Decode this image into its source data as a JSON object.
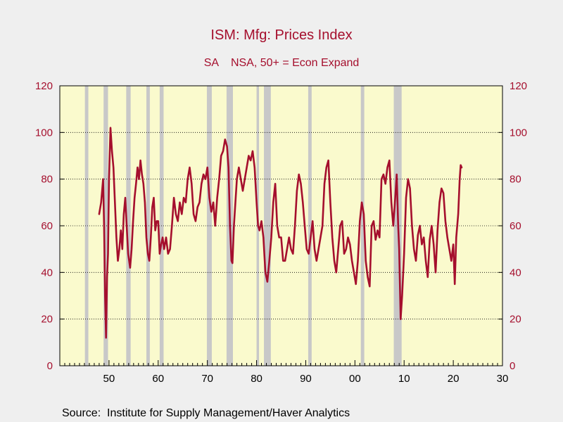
{
  "chart_data": {
    "type": "line",
    "title": "ISM: Mfg: Prices Index",
    "subtitle": "SA    NSA, 50+ = Econ Expand",
    "source": "Source:  Institute for Supply Management/Haver Analytics",
    "colors": {
      "line": "#a50f2d",
      "plot_bg": "#fafacd",
      "recession": "#c8c8c8",
      "grid": "#000000"
    },
    "xlim": [
      1940,
      2030
    ],
    "ylim": [
      0,
      120
    ],
    "y_ticks": [
      0,
      20,
      40,
      60,
      80,
      100,
      120
    ],
    "x_ticks": [
      1950,
      1960,
      1970,
      1980,
      1990,
      2000,
      2010,
      2020,
      2030
    ],
    "x_tick_labels": [
      "50",
      "60",
      "70",
      "80",
      "90",
      "00",
      "10",
      "20",
      "30"
    ],
    "grid": "horizontal dotted",
    "recessions": [
      [
        1945.1,
        1945.8
      ],
      [
        1948.9,
        1949.8
      ],
      [
        1953.5,
        1954.4
      ],
      [
        1957.6,
        1958.3
      ],
      [
        1960.3,
        1961.1
      ],
      [
        1969.9,
        1970.9
      ],
      [
        1973.9,
        1975.2
      ],
      [
        1980.0,
        1980.5
      ],
      [
        1981.5,
        1982.9
      ],
      [
        1990.5,
        1991.2
      ],
      [
        2001.2,
        2001.9
      ],
      [
        2007.9,
        2009.5
      ]
    ],
    "series": [
      {
        "x": [
          1948.0,
          1948.4,
          1948.8,
          1949.0,
          1949.2,
          1949.4,
          1949.6,
          1949.8,
          1950.0,
          1950.3,
          1950.6,
          1950.9,
          1951.2,
          1951.5,
          1951.8,
          1952.1,
          1952.4,
          1952.7,
          1953.0,
          1953.3,
          1953.6,
          1953.9,
          1954.3,
          1954.6,
          1954.9,
          1955.2,
          1955.5,
          1955.8,
          1956.1,
          1956.4,
          1956.7,
          1957.0,
          1957.3,
          1957.6,
          1957.9,
          1958.2,
          1958.5,
          1958.8,
          1959.1,
          1959.4,
          1959.7,
          1960.0,
          1960.3,
          1960.6,
          1960.9,
          1961.2,
          1961.6,
          1962.0,
          1962.4,
          1962.8,
          1963.2,
          1963.6,
          1964.0,
          1964.4,
          1964.8,
          1965.2,
          1965.6,
          1966.0,
          1966.4,
          1966.8,
          1967.2,
          1967.6,
          1968.0,
          1968.4,
          1968.8,
          1969.2,
          1969.6,
          1970.0,
          1970.4,
          1970.8,
          1971.2,
          1971.6,
          1972.0,
          1972.4,
          1972.8,
          1973.2,
          1973.6,
          1974.0,
          1974.3,
          1974.6,
          1974.9,
          1975.1,
          1975.4,
          1975.7,
          1976.0,
          1976.4,
          1976.8,
          1977.2,
          1977.6,
          1978.0,
          1978.4,
          1978.8,
          1979.2,
          1979.6,
          1980.0,
          1980.3,
          1980.6,
          1981.0,
          1981.4,
          1981.8,
          1982.2,
          1982.6,
          1983.0,
          1983.4,
          1983.8,
          1984.2,
          1984.6,
          1985.0,
          1985.4,
          1985.8,
          1986.2,
          1986.6,
          1987.0,
          1987.4,
          1987.8,
          1988.2,
          1988.6,
          1989.0,
          1989.4,
          1989.8,
          1990.2,
          1990.6,
          1991.0,
          1991.4,
          1991.8,
          1992.2,
          1992.6,
          1993.0,
          1993.4,
          1993.8,
          1994.2,
          1994.6,
          1995.0,
          1995.4,
          1995.8,
          1996.2,
          1996.6,
          1997.0,
          1997.4,
          1997.8,
          1998.2,
          1998.6,
          1999.0,
          1999.4,
          1999.8,
          2000.2,
          2000.6,
          2001.0,
          2001.4,
          2001.8,
          2002.2,
          2002.6,
          2003.0,
          2003.4,
          2003.8,
          2004.2,
          2004.6,
          2005.0,
          2005.4,
          2005.8,
          2006.2,
          2006.6,
          2007.0,
          2007.4,
          2007.8,
          2008.2,
          2008.5,
          2008.8,
          2009.0,
          2009.3,
          2009.6,
          2010.0,
          2010.4,
          2010.8,
          2011.2,
          2011.6,
          2012.0,
          2012.4,
          2012.8,
          2013.2,
          2013.6,
          2014.0,
          2014.4,
          2014.8,
          2015.2,
          2015.6,
          2016.0,
          2016.4,
          2016.8,
          2017.2,
          2017.6,
          2018.0,
          2018.4,
          2018.8,
          2019.2,
          2019.6,
          2020.0,
          2020.3,
          2020.6,
          2021.0,
          2021.3,
          2021.5,
          2021.7
        ],
        "values": [
          65,
          70,
          80,
          60,
          30,
          12,
          38,
          48,
          80,
          102,
          92,
          85,
          70,
          55,
          45,
          50,
          58,
          50,
          65,
          72,
          60,
          48,
          42,
          50,
          62,
          72,
          78,
          85,
          80,
          88,
          82,
          78,
          70,
          55,
          48,
          45,
          55,
          68,
          72,
          58,
          62,
          62,
          48,
          52,
          55,
          50,
          55,
          48,
          50,
          60,
          72,
          65,
          62,
          70,
          65,
          72,
          70,
          80,
          85,
          78,
          65,
          62,
          68,
          70,
          78,
          82,
          80,
          85,
          72,
          66,
          70,
          60,
          72,
          80,
          90,
          92,
          97,
          94,
          85,
          60,
          45,
          44,
          60,
          70,
          80,
          85,
          80,
          75,
          80,
          85,
          90,
          88,
          92,
          85,
          70,
          60,
          58,
          62,
          55,
          40,
          36,
          45,
          55,
          70,
          78,
          60,
          55,
          55,
          45,
          45,
          50,
          55,
          50,
          48,
          60,
          75,
          82,
          78,
          70,
          60,
          50,
          48,
          55,
          62,
          50,
          45,
          50,
          55,
          60,
          78,
          85,
          88,
          70,
          55,
          45,
          40,
          50,
          60,
          62,
          48,
          50,
          55,
          52,
          45,
          40,
          35,
          45,
          62,
          70,
          65,
          45,
          38,
          34,
          60,
          62,
          54,
          58,
          55,
          80,
          82,
          78,
          85,
          88,
          70,
          60,
          72,
          82,
          60,
          50,
          20,
          30,
          48,
          72,
          80,
          76,
          60,
          50,
          45,
          56,
          60,
          52,
          55,
          45,
          38,
          54,
          60,
          52,
          40,
          58,
          70,
          76,
          74,
          62,
          55,
          50,
          45,
          52,
          35,
          55,
          65,
          80,
          86,
          85
        ]
      }
    ]
  }
}
